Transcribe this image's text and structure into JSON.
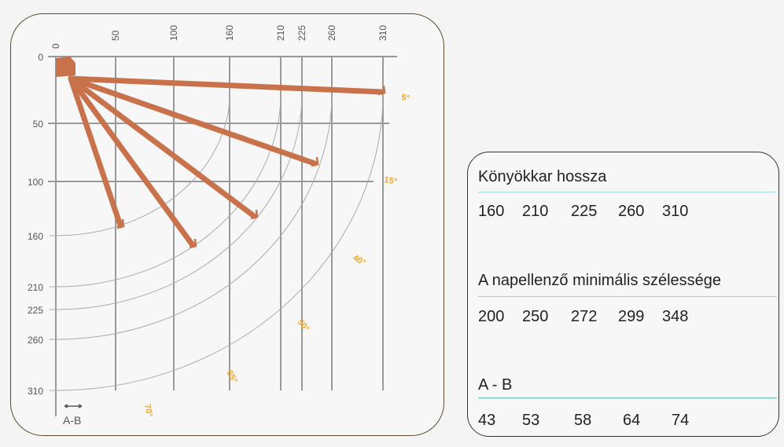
{
  "diagram": {
    "x_ticks": [
      "0",
      "50",
      "100",
      "160",
      "210",
      "225",
      "260",
      "310"
    ],
    "y_ticks": [
      "0",
      "50",
      "100",
      "160",
      "210",
      "225",
      "260",
      "310"
    ],
    "angle_labels": [
      "5°",
      "15°",
      "40°",
      "50°",
      "65°",
      "70°"
    ],
    "legend_label": "A-B",
    "colors": {
      "arm": "#c8714a",
      "grid": "#888888",
      "angle": "#f5a623"
    }
  },
  "info": {
    "section1": {
      "title": "Könyökkar hossza",
      "values": [
        "160",
        "210",
        "225",
        "260",
        "310"
      ],
      "rule_color": "#a8d8e8"
    },
    "section2": {
      "title": "A napellenző minimális szélessége",
      "values": [
        "200",
        "250",
        "272",
        "299",
        "348"
      ],
      "rule_color": "#f5c518"
    },
    "section3": {
      "title": "A - B",
      "values": [
        "43",
        "53",
        "58",
        "64",
        "74"
      ],
      "rule_color": "#5fb8a8"
    }
  }
}
